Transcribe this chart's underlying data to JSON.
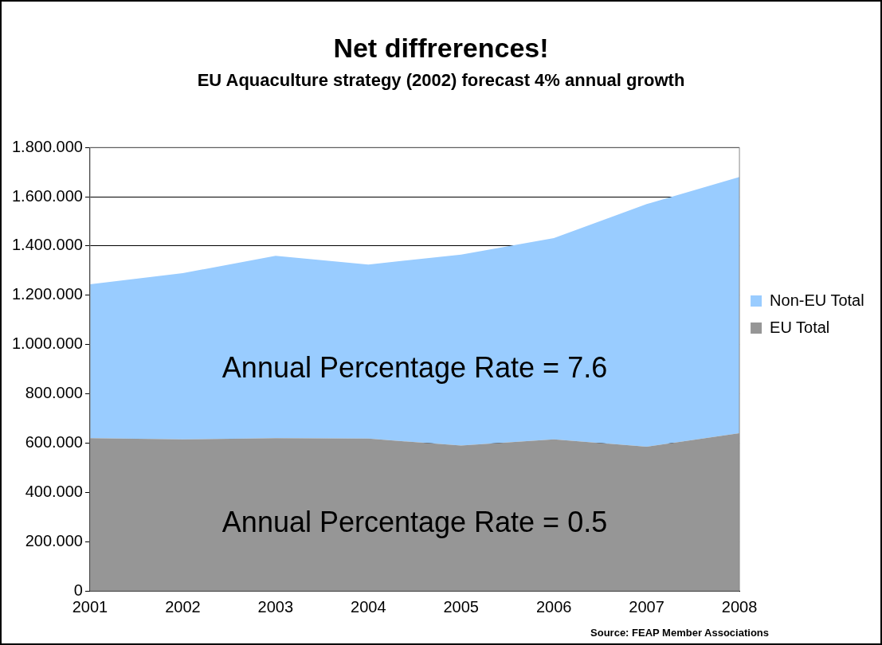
{
  "chart_data": {
    "type": "area",
    "title": "Net diffrerences!",
    "subtitle": "EU Aquaculture strategy (2002) forecast 4% annual growth",
    "categories": [
      "2001",
      "2002",
      "2003",
      "2004",
      "2005",
      "2006",
      "2007",
      "2008"
    ],
    "stacked": true,
    "series": [
      {
        "name": "EU Total",
        "color": "#969696",
        "values": [
          620000,
          615000,
          620000,
          618000,
          590000,
          615000,
          585000,
          640000
        ]
      },
      {
        "name": "Non-EU Total",
        "color": "#99ccff",
        "values": [
          625000,
          675000,
          740000,
          707000,
          775000,
          817000,
          985000,
          1040000
        ]
      }
    ],
    "ylim": [
      0,
      1800000
    ],
    "yticks": [
      {
        "value": 0,
        "label": "0"
      },
      {
        "value": 200000,
        "label": "200.000"
      },
      {
        "value": 400000,
        "label": "400.000"
      },
      {
        "value": 600000,
        "label": "600.000"
      },
      {
        "value": 800000,
        "label": "800.000"
      },
      {
        "value": 1000000,
        "label": "1.000.000"
      },
      {
        "value": 1200000,
        "label": "1.200.000"
      },
      {
        "value": 1400000,
        "label": "1.400.000"
      },
      {
        "value": 1600000,
        "label": "1.600.000"
      },
      {
        "value": 1800000,
        "label": "1.800.000"
      }
    ],
    "grid": "y",
    "legend": "right",
    "marker": "none",
    "annotations": [
      "Annual Percentage Rate = 7.6",
      "Annual Percentage Rate = 0.5",
      "Source: FEAP Member Associations"
    ]
  }
}
